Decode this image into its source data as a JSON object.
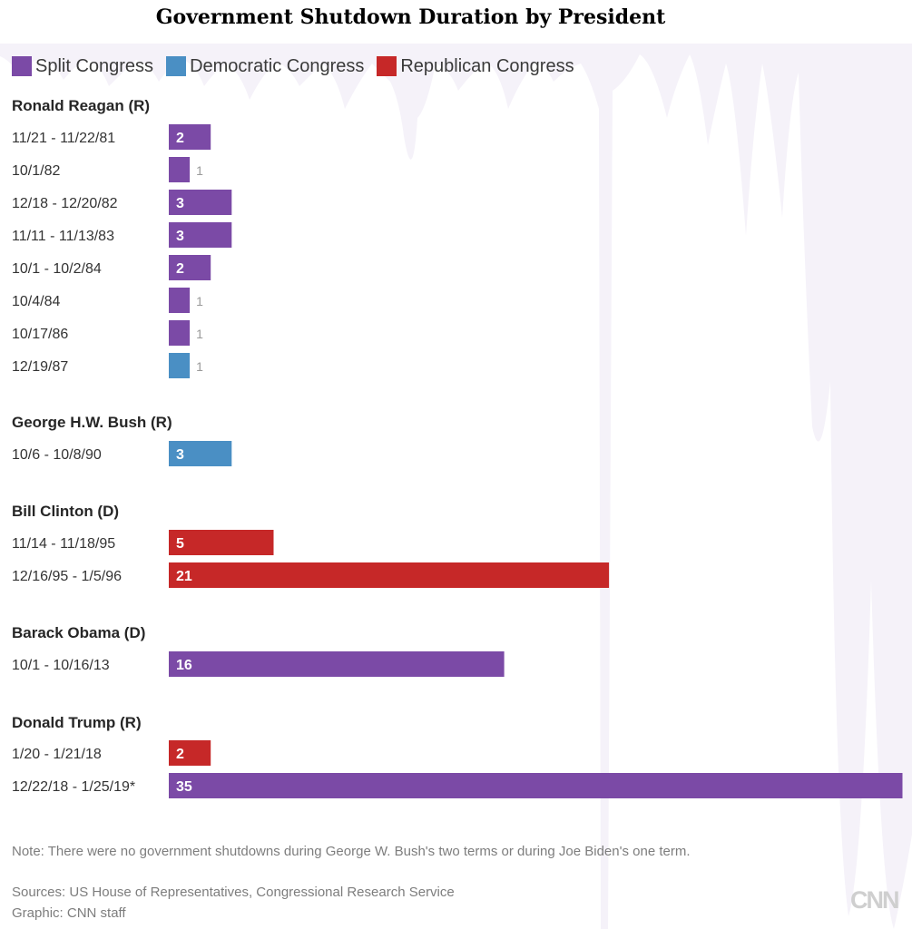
{
  "chart_data": {
    "type": "bar",
    "orientation": "horizontal",
    "title": "Government Shutdown Duration by President",
    "legend": [
      {
        "label": "Split Congress",
        "color": "#7b4aa6"
      },
      {
        "label": "Democratic Congress",
        "color": "#4a8fc4"
      },
      {
        "label": "Republican Congress",
        "color": "#c62828"
      }
    ],
    "groups": [
      {
        "president": "Ronald Reagan (R)",
        "shutdowns": [
          {
            "dates": "11/21 - 11/22/81",
            "days": 2,
            "congress": "Split Congress"
          },
          {
            "dates": "10/1/82",
            "days": 1,
            "congress": "Split Congress"
          },
          {
            "dates": "12/18 - 12/20/82",
            "days": 3,
            "congress": "Split Congress"
          },
          {
            "dates": "11/11 - 11/13/83",
            "days": 3,
            "congress": "Split Congress"
          },
          {
            "dates": "10/1 - 10/2/84",
            "days": 2,
            "congress": "Split Congress"
          },
          {
            "dates": "10/4/84",
            "days": 1,
            "congress": "Split Congress"
          },
          {
            "dates": "10/17/86",
            "days": 1,
            "congress": "Split Congress"
          },
          {
            "dates": "12/19/87",
            "days": 1,
            "congress": "Democratic Congress"
          }
        ]
      },
      {
        "president": "George H.W. Bush (R)",
        "shutdowns": [
          {
            "dates": "10/6 - 10/8/90",
            "days": 3,
            "congress": "Democratic Congress"
          }
        ]
      },
      {
        "president": "Bill Clinton (D)",
        "shutdowns": [
          {
            "dates": "11/14 - 11/18/95",
            "days": 5,
            "congress": "Republican Congress"
          },
          {
            "dates": "12/16/95 - 1/5/96",
            "days": 21,
            "congress": "Republican Congress"
          }
        ]
      },
      {
        "president": "Barack Obama (D)",
        "shutdowns": [
          {
            "dates": "10/1 - 10/16/13",
            "days": 16,
            "congress": "Split Congress"
          }
        ]
      },
      {
        "president": "Donald Trump (R)",
        "shutdowns": [
          {
            "dates": "1/20 - 1/21/18",
            "days": 2,
            "congress": "Republican Congress"
          },
          {
            "dates": "12/22/18 - 1/25/19*",
            "days": 35,
            "congress": "Split Congress"
          }
        ]
      }
    ],
    "xlim": [
      0,
      35
    ]
  },
  "footer": {
    "note": "Note: There were no government shutdowns during George W. Bush's two terms or during Joe Biden's one term.",
    "sources": "Sources: US House of Representatives, Congressional Research Service",
    "graphic": "Graphic: CNN staff",
    "logo": "CNN"
  }
}
